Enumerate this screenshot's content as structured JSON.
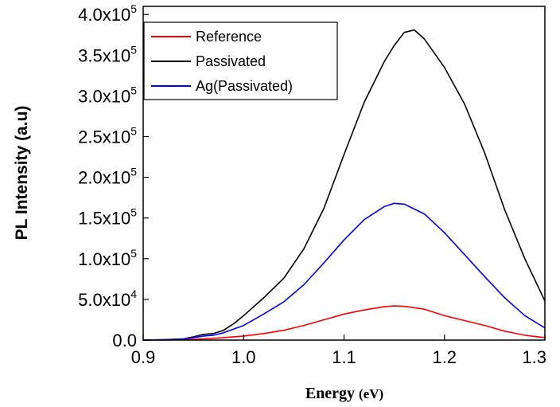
{
  "chart_data": {
    "type": "line",
    "title": "",
    "xlabel": "Energy (eV)",
    "xlabel_parts": {
      "main": "Energy ",
      "unit": "(eV)"
    },
    "ylabel": "PL Intensity (a.u)",
    "xlim": [
      0.9,
      1.3
    ],
    "ylim": [
      0,
      410000
    ],
    "grid": false,
    "legend_position": "top-left",
    "x_ticks": [
      {
        "value": 0.9,
        "label": "0.9"
      },
      {
        "value": 1.0,
        "label": "1.0"
      },
      {
        "value": 1.1,
        "label": "1.1"
      },
      {
        "value": 1.2,
        "label": "1.2"
      },
      {
        "value": 1.3,
        "label": "1.3"
      }
    ],
    "y_ticks": [
      {
        "value": 0,
        "mantissa": "0.0",
        "exp": ""
      },
      {
        "value": 50000,
        "mantissa": "5.0x10",
        "exp": "4"
      },
      {
        "value": 100000,
        "mantissa": "1.0x10",
        "exp": "5"
      },
      {
        "value": 150000,
        "mantissa": "1.5x10",
        "exp": "5"
      },
      {
        "value": 200000,
        "mantissa": "2.0x10",
        "exp": "5"
      },
      {
        "value": 250000,
        "mantissa": "2.5x10",
        "exp": "5"
      },
      {
        "value": 300000,
        "mantissa": "3.0x10",
        "exp": "5"
      },
      {
        "value": 350000,
        "mantissa": "3.5x10",
        "exp": "5"
      },
      {
        "value": 400000,
        "mantissa": "4.0x10",
        "exp": "5"
      }
    ],
    "series": [
      {
        "name": "Reference",
        "color": "#ff0000",
        "x": [
          0.9,
          0.92,
          0.94,
          0.96,
          0.98,
          1.0,
          1.02,
          1.04,
          1.06,
          1.08,
          1.1,
          1.12,
          1.14,
          1.15,
          1.16,
          1.18,
          1.2,
          1.22,
          1.24,
          1.26,
          1.28,
          1.3
        ],
        "y": [
          0,
          0,
          500,
          1500,
          3000,
          5000,
          8000,
          12000,
          18000,
          25000,
          32000,
          37000,
          41000,
          42000,
          41500,
          38000,
          30000,
          24000,
          18000,
          11000,
          6000,
          3000
        ]
      },
      {
        "name": "Passivated",
        "color": "#000000",
        "x": [
          0.9,
          0.92,
          0.94,
          0.95,
          0.96,
          0.97,
          0.98,
          0.99,
          1.0,
          1.02,
          1.04,
          1.06,
          1.08,
          1.1,
          1.12,
          1.14,
          1.15,
          1.16,
          1.17,
          1.18,
          1.2,
          1.22,
          1.24,
          1.26,
          1.28,
          1.3
        ],
        "y": [
          0,
          500,
          1500,
          4000,
          7000,
          8000,
          12000,
          20000,
          30000,
          52000,
          76000,
          112000,
          162000,
          228000,
          292000,
          342000,
          362000,
          378000,
          381000,
          370000,
          335000,
          290000,
          230000,
          160000,
          100000,
          48000
        ]
      },
      {
        "name": "Ag(Passivated)",
        "color": "#0000ff",
        "x": [
          0.9,
          0.92,
          0.94,
          0.95,
          0.96,
          0.97,
          0.98,
          1.0,
          1.02,
          1.04,
          1.06,
          1.08,
          1.1,
          1.12,
          1.14,
          1.15,
          1.16,
          1.18,
          1.2,
          1.22,
          1.24,
          1.26,
          1.28,
          1.3
        ],
        "y": [
          0,
          500,
          1500,
          3000,
          5000,
          6000,
          9000,
          18000,
          32000,
          47000,
          68000,
          95000,
          123000,
          148000,
          164000,
          168000,
          167000,
          155000,
          132000,
          105000,
          78000,
          52000,
          30000,
          15000
        ]
      }
    ]
  }
}
